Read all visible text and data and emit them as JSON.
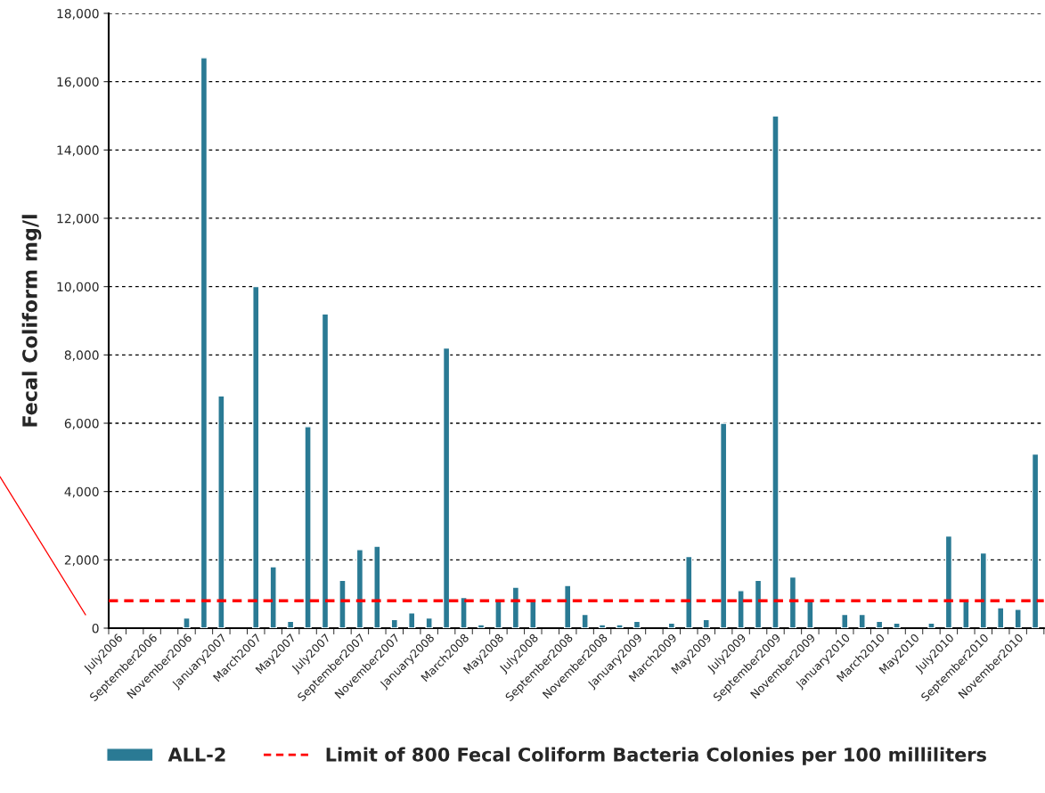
{
  "chart_data": {
    "type": "bar",
    "ylabel": "Fecal Coliform mg/l",
    "categories": [
      "July2006",
      null,
      "September2006",
      null,
      "November2006",
      null,
      "January2007",
      null,
      "March2007",
      null,
      "May2007",
      null,
      "July2007",
      null,
      "September2007",
      null,
      "November2007",
      null,
      "January2008",
      null,
      "March2008",
      null,
      "May2008",
      null,
      "July2008",
      null,
      "September2008",
      null,
      "November2008",
      null,
      "January2009",
      null,
      "March2009",
      null,
      "May2009",
      null,
      "July2009",
      null,
      "September2009",
      null,
      "November2009",
      null,
      "January2010",
      null,
      "March2010",
      null,
      "May2010",
      null,
      "July2010",
      null,
      "September2010",
      null,
      "November2010",
      null
    ],
    "series": [
      {
        "name": "ALL-2",
        "color": "#2a7a94",
        "values": [
          null,
          null,
          null,
          null,
          300,
          16700,
          6800,
          null,
          10000,
          1800,
          200,
          5900,
          9200,
          1400,
          2300,
          2400,
          250,
          450,
          300,
          8200,
          900,
          100,
          800,
          1200,
          850,
          null,
          1250,
          400,
          100,
          100,
          200,
          null,
          150,
          2100,
          250,
          6000,
          1100,
          1400,
          15000,
          1500,
          850,
          null,
          400,
          400,
          200,
          150,
          null,
          150,
          2700,
          800,
          2200,
          600,
          550,
          5100
        ]
      }
    ],
    "ylim": [
      0,
      18000
    ],
    "yticks": [
      0,
      {
        "value": 2000,
        "label": "2,000"
      },
      {
        "value": 4000,
        "label": "4,000"
      },
      {
        "value": 6000,
        "label": "6,000"
      },
      {
        "value": 8000,
        "label": "8,000"
      },
      {
        "value": 10000,
        "label": "10,000"
      },
      {
        "value": 12000,
        "label": "12,000"
      },
      {
        "value": 14000,
        "label": "14,000"
      },
      {
        "value": 16000,
        "label": "16,000"
      },
      {
        "value": 18000,
        "label": "18,000"
      }
    ],
    "ref_lines": [
      {
        "axis": "y",
        "value": 800,
        "label": "Limit of 800 Fecal Coliform Bacteria Colonies per 100 milliliters",
        "color": "#ff0000",
        "line_style": "dashed"
      }
    ],
    "grid": "y",
    "legend": "bottom"
  }
}
